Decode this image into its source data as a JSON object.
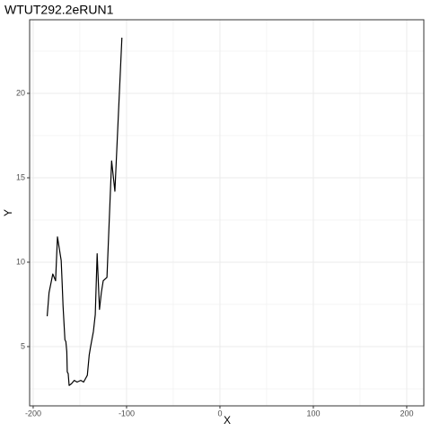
{
  "chart_data": {
    "type": "line",
    "title": "WTUT292.2eRUN1",
    "x_label": "X",
    "y_label": "Y",
    "x": [
      -185,
      -183,
      -179,
      -176,
      -174,
      -170,
      -169,
      -168,
      -166,
      -165,
      -164,
      -163.5,
      -162.5,
      -161.5,
      -159,
      -156,
      -153,
      -149,
      -146,
      -144,
      -142,
      -140,
      -138.5,
      -135.5,
      -133.5,
      -131.5,
      -129,
      -127,
      -125,
      -121,
      -116,
      -112.5,
      -105
    ],
    "series": [
      {
        "name": "Y",
        "color": "#000000",
        "values": [
          6.8,
          8.2,
          9.3,
          8.9,
          11.5,
          10.1,
          8.8,
          7.4,
          5.4,
          5.3,
          4.7,
          3.5,
          3.4,
          2.7,
          2.8,
          3.0,
          2.9,
          3.0,
          2.9,
          3.1,
          3.3,
          4.5,
          5.0,
          5.9,
          6.9,
          10.5,
          7.2,
          8.2,
          8.9,
          9.1,
          16.0,
          14.2,
          23.3
        ]
      }
    ],
    "xlim": [
      -203.8,
      218.3
    ],
    "ylim": [
      1.49,
      24.36
    ],
    "xticks": [
      -200,
      -100,
      0,
      100,
      200
    ],
    "yticks": [
      5,
      10,
      15,
      20
    ],
    "x_minor_grid": [
      -150,
      -50,
      50,
      150
    ],
    "y_minor_grid": [
      2.5,
      7.5,
      12.5,
      17.5,
      22.5
    ],
    "grid": true
  }
}
